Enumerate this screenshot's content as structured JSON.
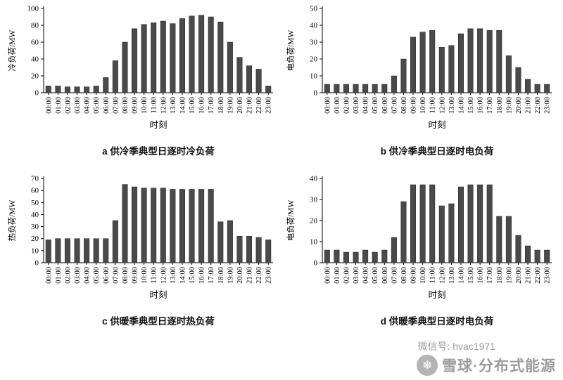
{
  "watermark": {
    "wechat_label": "微信号: hvac1971",
    "brand_label": "雪球·分布式能源",
    "logo_glyph": "❄",
    "text_color": "#9b9b9b"
  },
  "chart_data": [
    {
      "id": "a",
      "type": "bar",
      "title": "a  供冷季典型日逐时冷负荷",
      "ylabel": "冷负荷/MW",
      "xlabel": "时刻",
      "ylim": [
        0,
        100
      ],
      "yticks": [
        0,
        20,
        40,
        60,
        80,
        100
      ],
      "grid": false,
      "legend": false,
      "bar_color": "#4a4a4a",
      "categories": [
        "00:00",
        "01:00",
        "02:00",
        "03:00",
        "04:00",
        "05:00",
        "06:00",
        "07:00",
        "08:00",
        "09:00",
        "10:00",
        "11:00",
        "12:00",
        "13:00",
        "14:00",
        "15:00",
        "16:00",
        "17:00",
        "18:00",
        "19:00",
        "20:00",
        "21:00",
        "22:00",
        "23:00"
      ],
      "values": [
        8,
        8,
        7,
        7,
        7,
        8,
        18,
        38,
        60,
        76,
        81,
        83,
        85,
        82,
        88,
        91,
        92,
        90,
        84,
        60,
        42,
        32,
        28,
        8
      ]
    },
    {
      "id": "b",
      "type": "bar",
      "title": "b  供冷季典型日逐时电负荷",
      "ylabel": "电负荷/MW",
      "xlabel": "时刻",
      "ylim": [
        0,
        50
      ],
      "yticks": [
        0,
        10,
        20,
        30,
        40,
        50
      ],
      "grid": false,
      "legend": false,
      "bar_color": "#4a4a4a",
      "categories": [
        "00:00",
        "01:00",
        "02:00",
        "03:00",
        "04:00",
        "05:00",
        "06:00",
        "07:00",
        "08:00",
        "09:00",
        "10:00",
        "11:00",
        "12:00",
        "13:00",
        "14:00",
        "15:00",
        "16:00",
        "17:00",
        "18:00",
        "19:00",
        "20:00",
        "21:00",
        "22:00",
        "23:00"
      ],
      "values": [
        5,
        5,
        5,
        5,
        5,
        5,
        5,
        10,
        20,
        33,
        36,
        37,
        27,
        28,
        35,
        38,
        38,
        37,
        37,
        22,
        15,
        8,
        5,
        5
      ]
    },
    {
      "id": "c",
      "type": "bar",
      "title": "c  供暖季典型日逐时热负荷",
      "ylabel": "热负荷/MW",
      "xlabel": "时刻",
      "ylim": [
        0,
        70
      ],
      "yticks": [
        0,
        10,
        20,
        30,
        40,
        50,
        60,
        70
      ],
      "grid": false,
      "legend": false,
      "bar_color": "#4a4a4a",
      "categories": [
        "00:00",
        "01:00",
        "02:00",
        "03:00",
        "04:00",
        "05:00",
        "06:00",
        "07:00",
        "08:00",
        "09:00",
        "10:00",
        "11:00",
        "12:00",
        "13:00",
        "14:00",
        "15:00",
        "16:00",
        "17:00",
        "18:00",
        "19:00",
        "20:00",
        "21:00",
        "22:00",
        "23:00"
      ],
      "values": [
        19,
        20,
        20,
        20,
        20,
        20,
        20,
        35,
        65,
        63,
        62,
        62,
        62,
        61,
        61,
        61,
        61,
        61,
        34,
        35,
        22,
        22,
        21,
        19
      ]
    },
    {
      "id": "d",
      "type": "bar",
      "title": "d  供暖季典型日逐时电负荷",
      "ylabel": "电负荷/MW",
      "xlabel": "时刻",
      "ylim": [
        0,
        40
      ],
      "yticks": [
        0,
        10,
        20,
        30,
        40
      ],
      "grid": false,
      "legend": false,
      "bar_color": "#4a4a4a",
      "categories": [
        "00:00",
        "01:00",
        "02:00",
        "03:00",
        "04:00",
        "05:00",
        "06:00",
        "07:00",
        "08:00",
        "09:00",
        "10:00",
        "11:00",
        "12:00",
        "13:00",
        "14:00",
        "15:00",
        "16:00",
        "17:00",
        "18:00",
        "19:00",
        "20:00",
        "21:00",
        "22:00",
        "23:00"
      ],
      "values": [
        6,
        6,
        5,
        5,
        6,
        5,
        6,
        12,
        29,
        37,
        37,
        37,
        27,
        28,
        36,
        37,
        37,
        37,
        22,
        22,
        13,
        8,
        6,
        6
      ]
    }
  ]
}
